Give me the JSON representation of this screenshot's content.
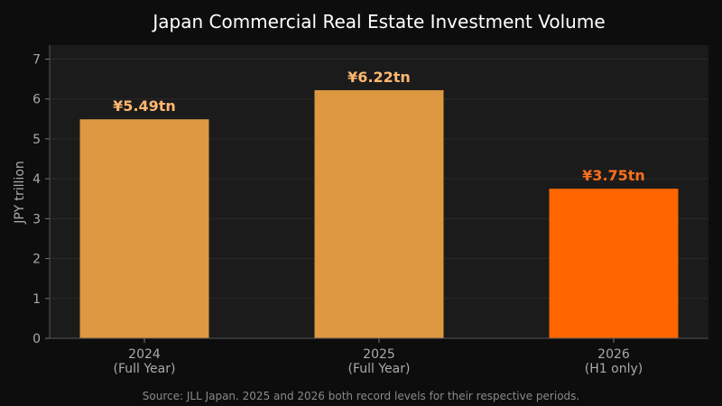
{
  "chart_data": {
    "type": "bar",
    "title": "Japan Commercial Real Estate Investment Volume",
    "ylabel": "JPY trillion",
    "xlabel": "",
    "categories": [
      [
        "2024",
        "(Full Year)"
      ],
      [
        "2025",
        "(Full Year)"
      ],
      [
        "2026",
        "(H1 only)"
      ]
    ],
    "values": [
      5.49,
      6.22,
      3.75
    ],
    "data_labels": [
      "¥5.49tn",
      "¥6.22tn",
      "¥3.75tn"
    ],
    "bar_colors": [
      "#dd9841",
      "#dd9841",
      "#ff6600"
    ],
    "label_colors": [
      "#ffb870",
      "#ffb870",
      "#ff6f1a"
    ],
    "ylim": [
      0,
      7.35
    ],
    "yticks": [
      0,
      1,
      2,
      3,
      4,
      5,
      6,
      7
    ],
    "grid": true,
    "legend": "none"
  },
  "footer": {
    "source": "Source: JLL Japan. 2025 and 2026 both record levels for their respective periods."
  },
  "colors": {
    "page_background": "#0d0d0d",
    "plot_background": "#1b1b1b"
  }
}
